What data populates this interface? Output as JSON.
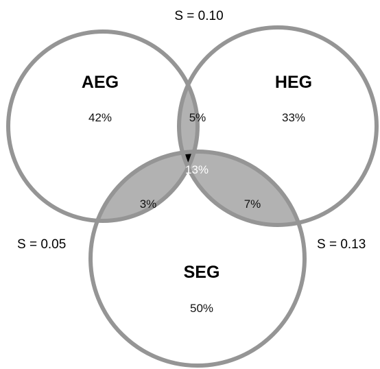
{
  "diagram": {
    "sets": {
      "aeg": {
        "label": "AEG",
        "percent": "42%"
      },
      "heg": {
        "label": "HEG",
        "percent": "33%"
      },
      "seg": {
        "label": "SEG",
        "percent": "50%"
      }
    },
    "overlaps": {
      "aeg_heg": "5%",
      "aeg_seg": "3%",
      "heg_seg": "7%",
      "all_three": "13%"
    },
    "similarities": {
      "aeg_heg": "S = 0.10",
      "aeg_seg": "S = 0.05",
      "heg_seg": "S = 0.13"
    },
    "colors": {
      "outline": "#959595",
      "pair_overlap_fill": "#b2b2b2",
      "triple_overlap_fill": "#000000",
      "background": "#ffffff"
    }
  }
}
